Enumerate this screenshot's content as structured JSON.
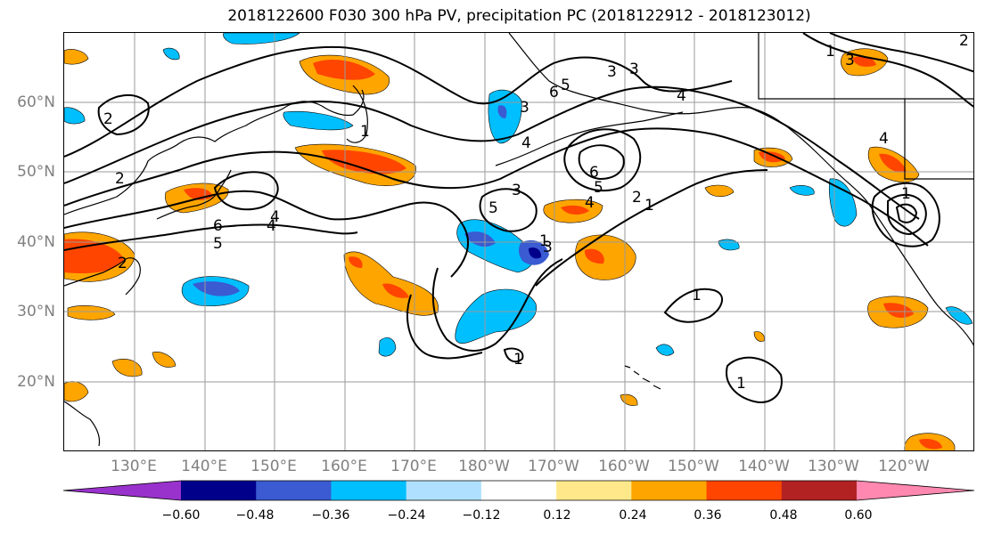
{
  "title": "2018122600 F030 300 hPa PV, precipitation PC (2018122912 - 2018123012)",
  "lat_labels": [
    "60°N",
    "50°N",
    "40°N",
    "30°N",
    "20°N"
  ],
  "lon_labels": [
    "130°E",
    "140°E",
    "150°E",
    "160°E",
    "170°E",
    "180°W",
    "170°W",
    "160°W",
    "150°W",
    "140°W",
    "130°W",
    "120°W"
  ],
  "colorbar": {
    "ticks": [
      "−0.60",
      "−0.48",
      "−0.36",
      "−0.24",
      "−0.12",
      "0.12",
      "0.24",
      "0.36",
      "0.48",
      "0.60"
    ],
    "colors": [
      "#9932cc",
      "#00008b",
      "#3a5bd1",
      "#00bfff",
      "#b0e0ff",
      "#ffffff",
      "#ffe88a",
      "#ffa500",
      "#ff4500",
      "#b22222",
      "#ff88b0"
    ]
  },
  "contour_labels": [
    "2",
    "2",
    "1",
    "4",
    "5",
    "6",
    "4",
    "5",
    "3",
    "1",
    "2",
    "4",
    "3",
    "6",
    "5",
    "4",
    "3",
    "3",
    "5",
    "4",
    "6",
    "1",
    "2",
    "1",
    "4",
    "3",
    "2",
    "1",
    "1",
    "1",
    "1",
    "3"
  ]
}
